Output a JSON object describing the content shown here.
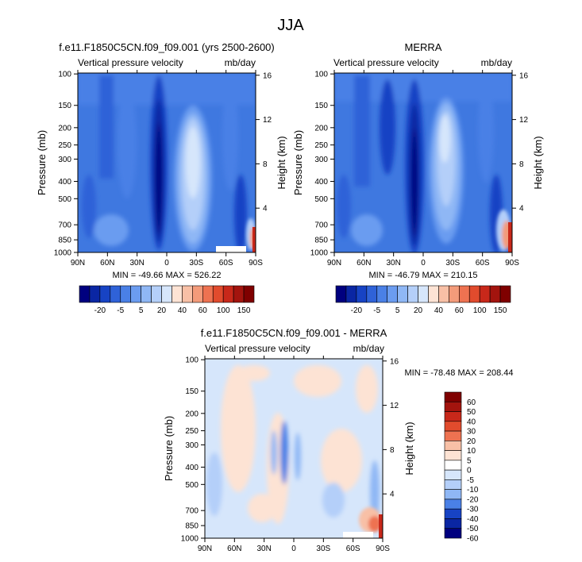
{
  "page": {
    "title": "JJA"
  },
  "chart_data": [
    {
      "type": "heatmap",
      "title": "f.e11.F1850C5CN.f09_f09.001 (yrs 2500-2600)",
      "left_label": "Vertical pressure velocity",
      "right_label": "mb/day",
      "ylabel": "Pressure (mb)",
      "ylabel_right": "Height (km)",
      "x_ticks": [
        "90N",
        "60N",
        "30N",
        "0",
        "30S",
        "60S",
        "90S"
      ],
      "y_ticks": [
        "100",
        "150",
        "200",
        "250",
        "300",
        "400",
        "500",
        "700",
        "850",
        "1000"
      ],
      "y2_ticks": [
        "16",
        "12",
        "8",
        "4"
      ],
      "stats": "MIN = -49.66  MAX = 526.22",
      "colorbar_labels": [
        "-20",
        "-5",
        "5",
        "20",
        "40",
        "60",
        "100",
        "150"
      ]
    },
    {
      "type": "heatmap",
      "title": "MERRA",
      "left_label": "Vertical pressure velocity",
      "right_label": "mb/day",
      "ylabel": "Pressure (mb)",
      "ylabel_right": "Height (km)",
      "x_ticks": [
        "90N",
        "60N",
        "30N",
        "0",
        "30S",
        "60S",
        "90S"
      ],
      "y_ticks": [
        "100",
        "150",
        "200",
        "250",
        "300",
        "400",
        "500",
        "700",
        "850",
        "1000"
      ],
      "y2_ticks": [
        "16",
        "12",
        "8",
        "4"
      ],
      "stats": "MIN = -46.79  MAX = 210.15",
      "colorbar_labels": [
        "-20",
        "-5",
        "5",
        "20",
        "40",
        "60",
        "100",
        "150"
      ]
    },
    {
      "type": "heatmap",
      "title": "f.e11.F1850C5CN.f09_f09.001 - MERRA",
      "left_label": "Vertical pressure velocity",
      "right_label": "mb/day",
      "ylabel": "Pressure (mb)",
      "ylabel_right": "Height (km)",
      "x_ticks": [
        "90N",
        "60N",
        "30N",
        "0",
        "30S",
        "60S",
        "90S"
      ],
      "y_ticks": [
        "100",
        "150",
        "200",
        "250",
        "300",
        "400",
        "500",
        "700",
        "850",
        "1000"
      ],
      "y2_ticks": [
        "16",
        "12",
        "8",
        "4"
      ],
      "stats": "MIN = -78.48  MAX = 208.44",
      "colorbar_labels": [
        "60",
        "50",
        "40",
        "30",
        "20",
        "10",
        "5",
        "0",
        "-5",
        "-10",
        "-20",
        "-30",
        "-40",
        "-50",
        "-60"
      ]
    }
  ],
  "colors": {
    "main_bar": [
      "#00007f",
      "#0a26a3",
      "#1743c4",
      "#2f62d8",
      "#4a80e6",
      "#6b9cf0",
      "#8fb7f5",
      "#b4cff9",
      "#d6e6fb",
      "#fde3d4",
      "#f8c0a6",
      "#f39b7a",
      "#ee7251",
      "#e14b2d",
      "#c8281a",
      "#a3140e",
      "#7f0000"
    ],
    "diff_bar": [
      "#7f0000",
      "#a3140e",
      "#c8281a",
      "#e14b2d",
      "#ee7251",
      "#f8c0a6",
      "#fde3d4",
      "#ffffff",
      "#d6e6fb",
      "#b4cff9",
      "#8fb7f5",
      "#4a80e6",
      "#1743c4",
      "#0a26a3",
      "#00007f"
    ]
  }
}
